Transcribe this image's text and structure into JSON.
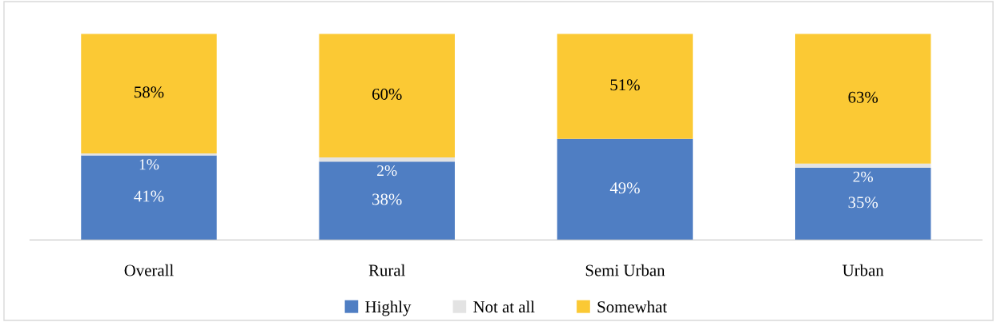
{
  "chart_data": {
    "type": "bar",
    "stacked": true,
    "categories": [
      "Overall",
      "Rural",
      "Semi Urban",
      "Urban"
    ],
    "series": [
      {
        "name": "Highly",
        "color": "#4f7ec3",
        "values": [
          41,
          38,
          49,
          35
        ],
        "value_labels": [
          "41%",
          "38%",
          "49%",
          "35%"
        ]
      },
      {
        "name": "Not at all",
        "color": "#e3e3e3",
        "values": [
          1,
          2,
          0,
          2
        ],
        "value_labels": [
          "1%",
          "2%",
          null,
          "2%"
        ]
      },
      {
        "name": "Somewhat",
        "color": "#fbc934",
        "values": [
          58,
          60,
          51,
          63
        ],
        "value_labels": [
          "58%",
          "60%",
          "51%",
          "63%"
        ]
      }
    ],
    "ylim": [
      0,
      100
    ],
    "grid": false,
    "legend": "bottom"
  }
}
